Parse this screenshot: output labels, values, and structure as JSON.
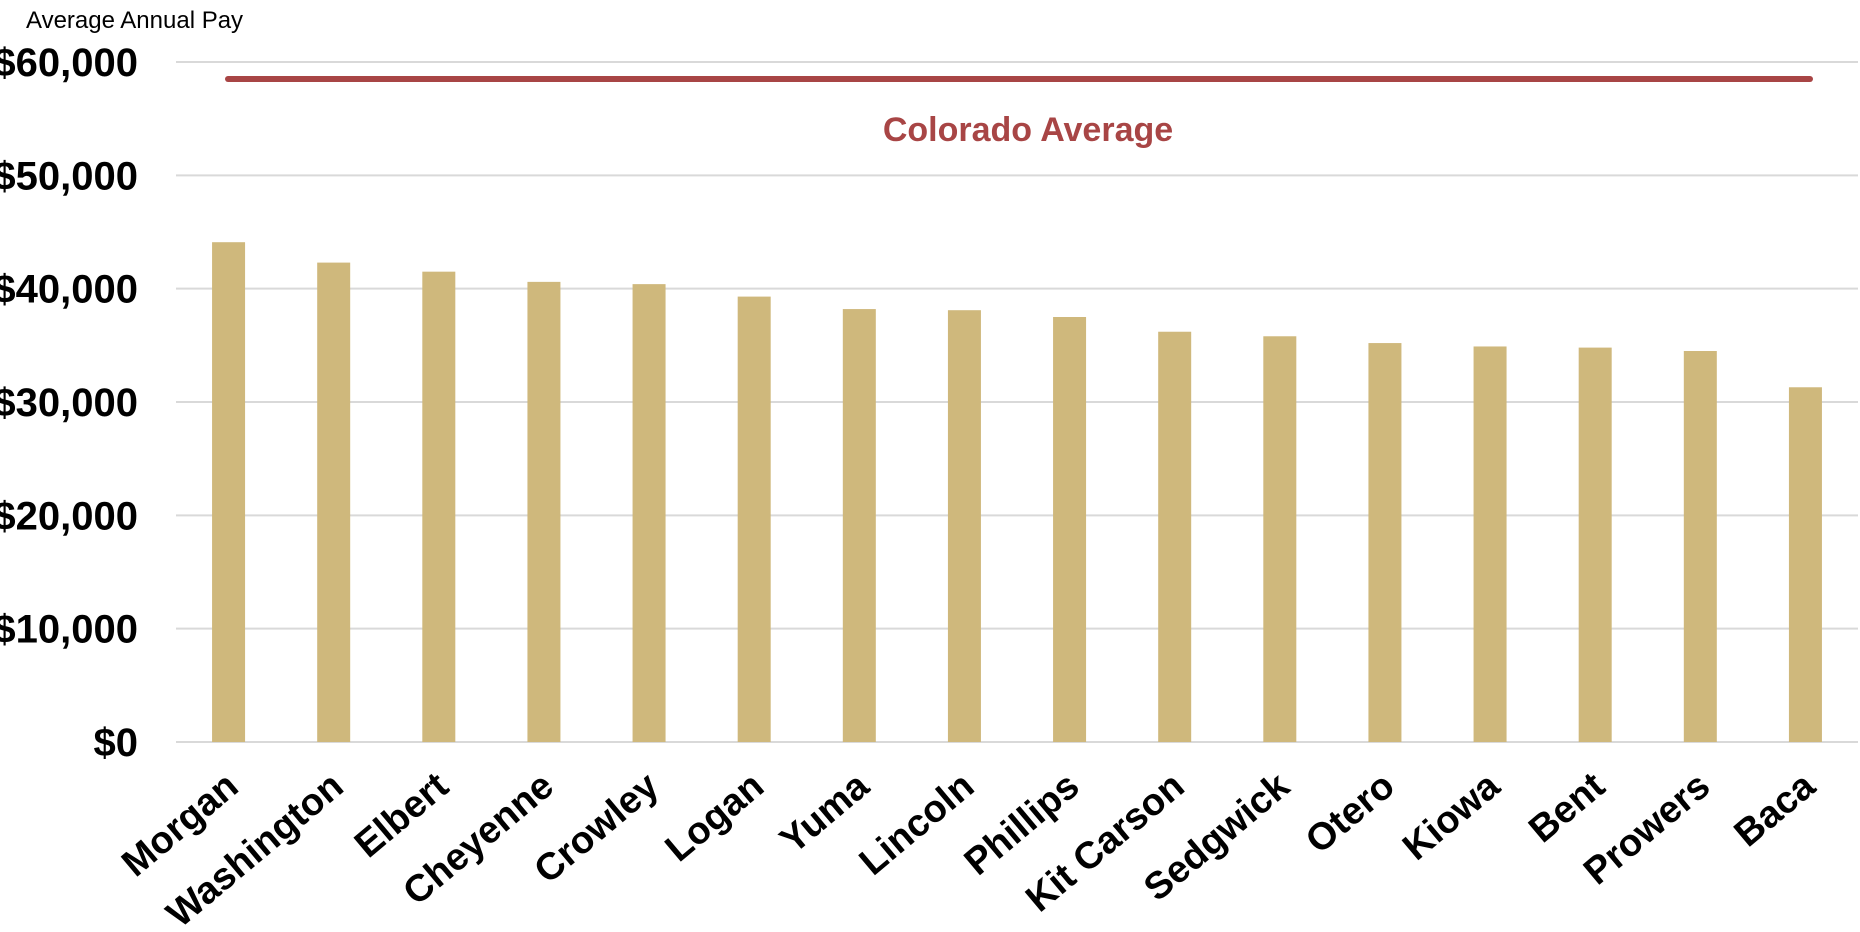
{
  "chart_data": {
    "type": "bar",
    "ylabel": "Average Annual Pay",
    "xlabel": "",
    "categories": [
      "Morgan",
      "Washington",
      "Elbert",
      "Cheyenne",
      "Crowley",
      "Logan",
      "Yuma",
      "Lincoln",
      "Phillips",
      "Kit Carson",
      "Sedgwick",
      "Otero",
      "Kiowa",
      "Bent",
      "Prowers",
      "Baca"
    ],
    "values": [
      44100,
      42300,
      41500,
      40600,
      40400,
      39300,
      38200,
      38100,
      37500,
      36200,
      35800,
      35200,
      34900,
      34800,
      34500,
      31300
    ],
    "ylim": [
      0,
      60000
    ],
    "yticks": [
      0,
      10000,
      20000,
      30000,
      40000,
      50000,
      60000
    ],
    "ytick_labels": [
      "$0",
      "$10,000",
      "$20,000",
      "$30,000",
      "$40,000",
      "$50,000",
      "$60,000"
    ],
    "grid": true,
    "bar_color": "#cfb87c",
    "reference_line": {
      "label": "Colorado Average",
      "value": 58500,
      "color": "#a84545"
    }
  }
}
